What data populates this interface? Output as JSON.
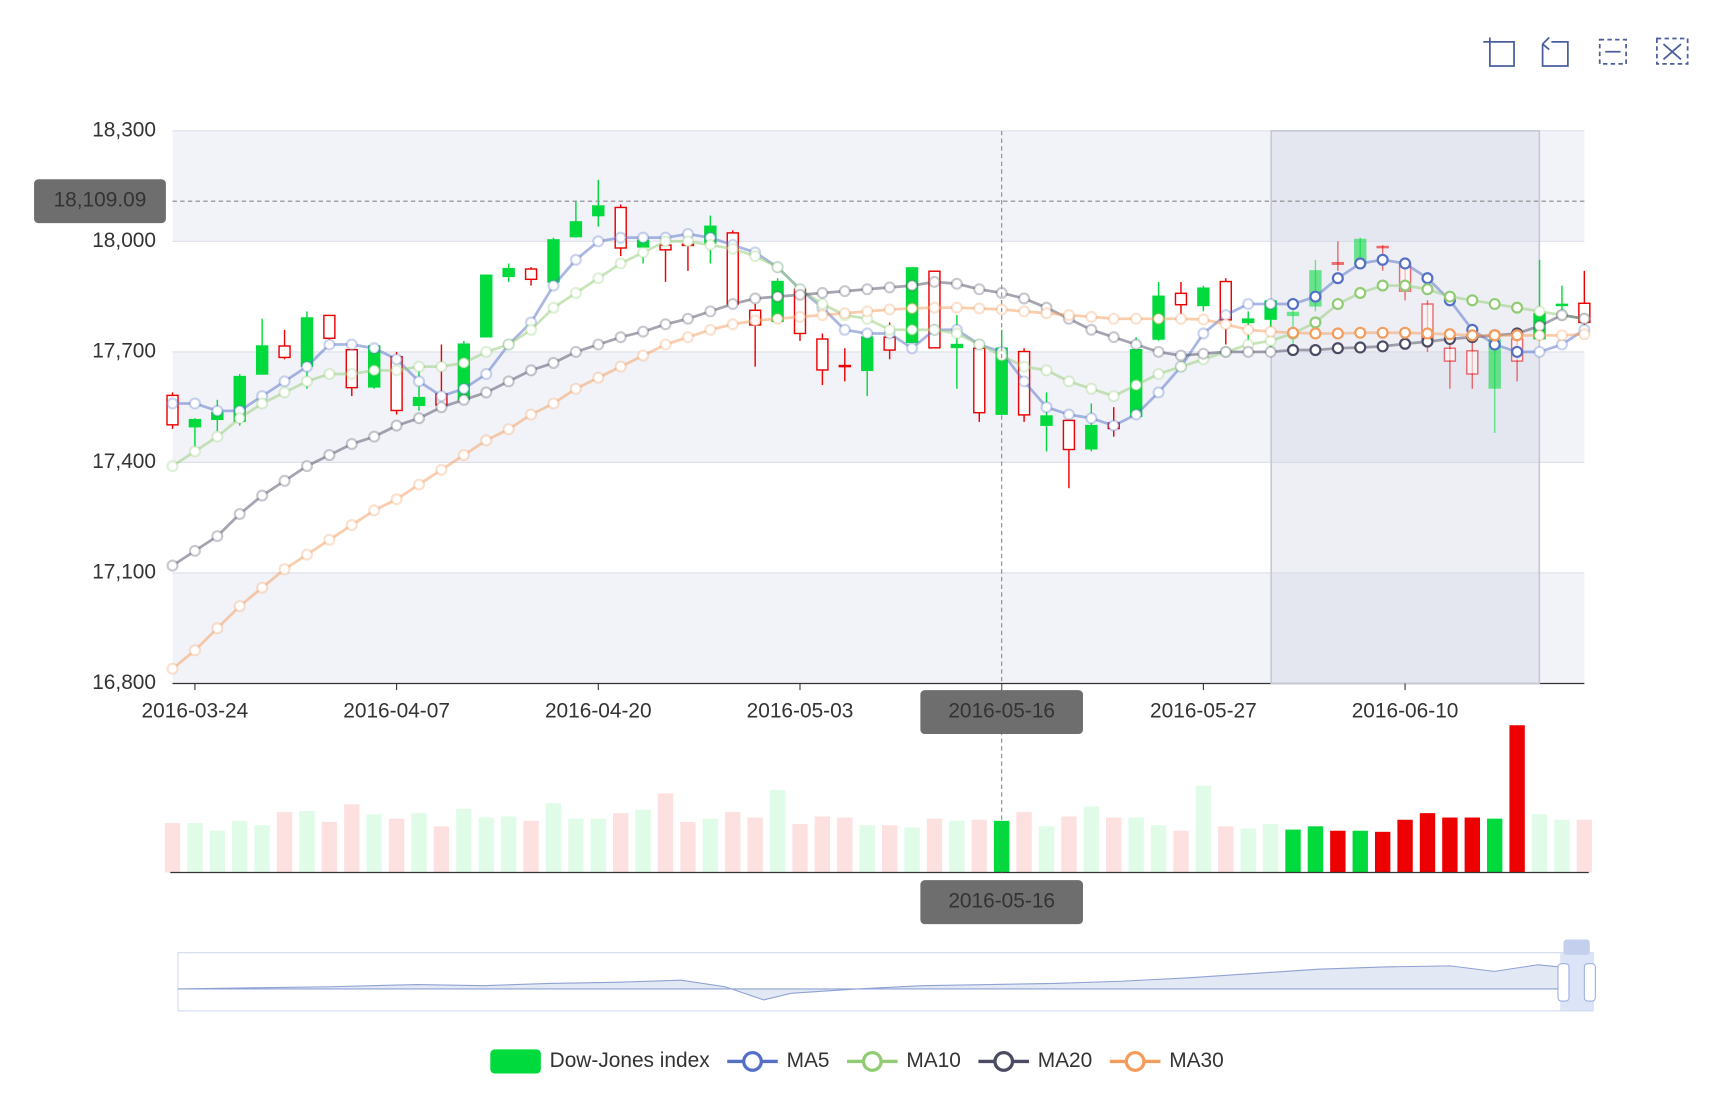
{
  "chart_data": {
    "type": "candlestick",
    "categories": [
      null,
      "2016-03-24",
      null,
      null,
      null,
      null,
      null,
      null,
      null,
      null,
      "2016-04-07",
      null,
      null,
      null,
      null,
      null,
      null,
      null,
      null,
      "2016-04-20",
      null,
      null,
      null,
      null,
      null,
      null,
      null,
      null,
      "2016-05-03",
      null,
      null,
      null,
      null,
      null,
      null,
      null,
      null,
      "2016-05-16",
      null,
      null,
      null,
      null,
      null,
      null,
      null,
      null,
      "2016-05-27",
      null,
      null,
      null,
      null,
      null,
      null,
      null,
      null,
      "2016-06-10",
      null,
      null,
      null,
      null,
      null,
      null,
      null,
      null
    ],
    "ylim": [
      16800,
      18300
    ],
    "yticks": [
      {
        "value": 16800,
        "label": "16,800"
      },
      {
        "value": 17100,
        "label": "17,100"
      },
      {
        "value": 17400,
        "label": "17,400"
      },
      {
        "value": 17700,
        "label": "17,700"
      },
      {
        "value": 18000,
        "label": "18,000"
      },
      {
        "value": 18300,
        "label": "18,300"
      }
    ],
    "split_area": true,
    "series": [
      {
        "name": "Dow-Jones index",
        "type": "candlestick",
        "up_color": "#00da3c",
        "down_color": "#ec0000",
        "values": [
          [
            17582,
            17502,
            17491,
            17590
          ],
          [
            17497,
            17516,
            17420,
            17520
          ],
          [
            17517,
            17535,
            17485,
            17570
          ],
          [
            17512,
            17633,
            17500,
            17640
          ],
          [
            17640,
            17716,
            17640,
            17790
          ],
          [
            17716,
            17685,
            17680,
            17760
          ],
          [
            17661,
            17792,
            17600,
            17810
          ],
          [
            17799,
            17737,
            17730,
            17800
          ],
          [
            17706,
            17603,
            17580,
            17720
          ],
          [
            17605,
            17716,
            17600,
            17720
          ],
          [
            17687,
            17541,
            17530,
            17700
          ],
          [
            17555,
            17576,
            17540,
            17660
          ],
          [
            17586,
            17556,
            17540,
            17720
          ],
          [
            17571,
            17721,
            17560,
            17730
          ],
          [
            17741,
            17908,
            17740,
            17910
          ],
          [
            17905,
            17926,
            17890,
            17940
          ],
          [
            17925,
            17897,
            17880,
            17930
          ],
          [
            17890,
            18004,
            17890,
            18010
          ],
          [
            18013,
            18053,
            18010,
            18110
          ],
          [
            18070,
            18096,
            18040,
            18167
          ],
          [
            18092,
            17982,
            17960,
            18100
          ],
          [
            17985,
            18003,
            17940,
            18020
          ],
          [
            17990,
            17977,
            17890,
            18000
          ],
          [
            17992,
            17990,
            17920,
            18010
          ],
          [
            17996,
            18041,
            17940,
            18070
          ],
          [
            18023,
            17830,
            17820,
            18030
          ],
          [
            17813,
            17773,
            17660,
            17830
          ],
          [
            17783,
            17891,
            17780,
            17900
          ],
          [
            17870,
            17750,
            17730,
            17870
          ],
          [
            17735,
            17651,
            17610,
            17750
          ],
          [
            17663,
            17660,
            17620,
            17710
          ],
          [
            17650,
            17740,
            17580,
            17760
          ],
          [
            17740,
            17705,
            17680,
            17780
          ],
          [
            17726,
            17928,
            17726,
            17930
          ],
          [
            17919,
            17711,
            17710,
            17920
          ],
          [
            17712,
            17720,
            17600,
            17800
          ],
          [
            17710,
            17535,
            17510,
            17720
          ],
          [
            17531,
            17710,
            17530,
            17760
          ],
          [
            17701,
            17529,
            17510,
            17710
          ],
          [
            17501,
            17526,
            17430,
            17590
          ],
          [
            17514,
            17435,
            17330,
            17530
          ],
          [
            17437,
            17500,
            17430,
            17560
          ],
          [
            17507,
            17492,
            17470,
            17550
          ],
          [
            17525,
            17706,
            17520,
            17740
          ],
          [
            17735,
            17851,
            17730,
            17890
          ],
          [
            17859,
            17828,
            17800,
            17890
          ],
          [
            17826,
            17873,
            17810,
            17880
          ],
          [
            17891,
            17787,
            17720,
            17900
          ],
          [
            17780,
            17789,
            17700,
            17810
          ],
          [
            17789,
            17838,
            17700,
            17840
          ],
          [
            17799,
            17807,
            17720,
            17820
          ],
          [
            17825,
            17920,
            17810,
            17950
          ],
          [
            17942,
            17938,
            17920,
            18000
          ],
          [
            17938,
            18005,
            17930,
            18010
          ],
          [
            17986,
            17985,
            17920,
            17990
          ],
          [
            17939,
            17865,
            17840,
            17945
          ],
          [
            17830,
            17732,
            17700,
            17840
          ],
          [
            17710,
            17675,
            17600,
            17760
          ],
          [
            17703,
            17640,
            17600,
            17740
          ],
          [
            17602,
            17733,
            17480,
            17740
          ],
          [
            17735,
            17675,
            17620,
            17760
          ],
          [
            17736,
            17804,
            17730,
            17950
          ],
          [
            17827,
            17829,
            17790,
            17880
          ],
          [
            17832,
            17780,
            17760,
            17920
          ]
        ]
      },
      {
        "name": "MA5",
        "type": "line",
        "color": "#5470c6",
        "values": [
          17560,
          17560,
          17540,
          17540,
          17580,
          17620,
          17660,
          17720,
          17720,
          17710,
          17680,
          17620,
          17580,
          17600,
          17640,
          17720,
          17780,
          17880,
          17950,
          18000,
          18010,
          18010,
          18010,
          18020,
          18010,
          17990,
          17970,
          17930,
          17870,
          17820,
          17760,
          17750,
          17750,
          17710,
          17760,
          17760,
          17720,
          17700,
          17620,
          17550,
          17530,
          17520,
          17500,
          17530,
          17590,
          17660,
          17750,
          17800,
          17830,
          17830,
          17830,
          17850,
          17900,
          17940,
          17950,
          17940,
          17900,
          17840,
          17760,
          17720,
          17700,
          17700,
          17720,
          17760
        ]
      },
      {
        "name": "MA10",
        "type": "line",
        "color": "#91cc75",
        "values": [
          17390,
          17430,
          17470,
          17520,
          17560,
          17590,
          17620,
          17640,
          17640,
          17650,
          17650,
          17660,
          17660,
          17670,
          17700,
          17720,
          17760,
          17820,
          17860,
          17900,
          17940,
          17970,
          18000,
          18000,
          17990,
          17980,
          17960,
          17930,
          17870,
          17830,
          17800,
          17790,
          17760,
          17760,
          17760,
          17750,
          17720,
          17690,
          17660,
          17650,
          17620,
          17600,
          17580,
          17610,
          17640,
          17660,
          17680,
          17700,
          17720,
          17730,
          17750,
          17780,
          17830,
          17860,
          17880,
          17880,
          17870,
          17850,
          17840,
          17830,
          17820,
          17810,
          17800,
          17790
        ]
      },
      {
        "name": "MA20",
        "type": "line",
        "color": "#4b4b63",
        "values": [
          17120,
          17160,
          17200,
          17260,
          17310,
          17350,
          17390,
          17420,
          17450,
          17470,
          17500,
          17520,
          17550,
          17570,
          17590,
          17620,
          17650,
          17670,
          17700,
          17720,
          17740,
          17755,
          17775,
          17790,
          17810,
          17830,
          17845,
          17850,
          17855,
          17860,
          17865,
          17870,
          17875,
          17880,
          17890,
          17885,
          17870,
          17860,
          17845,
          17820,
          17790,
          17760,
          17740,
          17720,
          17700,
          17690,
          17695,
          17700,
          17700,
          17700,
          17705,
          17705,
          17710,
          17712,
          17715,
          17722,
          17728,
          17735,
          17740,
          17745,
          17750,
          17770,
          17800,
          17790
        ]
      },
      {
        "name": "MA30",
        "type": "line",
        "color": "#f39c5c",
        "values": [
          16840,
          16890,
          16950,
          17010,
          17060,
          17110,
          17150,
          17190,
          17230,
          17270,
          17300,
          17340,
          17380,
          17420,
          17460,
          17490,
          17530,
          17560,
          17600,
          17630,
          17660,
          17690,
          17720,
          17740,
          17760,
          17775,
          17785,
          17790,
          17795,
          17800,
          17805,
          17810,
          17815,
          17818,
          17820,
          17820,
          17818,
          17815,
          17810,
          17805,
          17800,
          17795,
          17790,
          17790,
          17790,
          17790,
          17788,
          17775,
          17760,
          17755,
          17752,
          17750,
          17750,
          17752,
          17752,
          17752,
          17750,
          17748,
          17745,
          17745,
          17745,
          17745,
          17745,
          17748
        ]
      }
    ],
    "volume": {
      "values": [
        45,
        45,
        38,
        47,
        43,
        55,
        56,
        46,
        62,
        53,
        49,
        54,
        42,
        58,
        50,
        51,
        47,
        63,
        49,
        49,
        54,
        57,
        72,
        46,
        49,
        55,
        50,
        75,
        44,
        51,
        50,
        43,
        43,
        41,
        49,
        47,
        48,
        47,
        55,
        42,
        51,
        60,
        50,
        50,
        43,
        38,
        79,
        42,
        40,
        44,
        39,
        42,
        38,
        38,
        37,
        48,
        54,
        50,
        50,
        49,
        134,
        53,
        48,
        48
      ]
    },
    "pointer": {
      "x": "2016-05-16",
      "y": 18109.09,
      "y_label": "18,109.09"
    }
  }
}
